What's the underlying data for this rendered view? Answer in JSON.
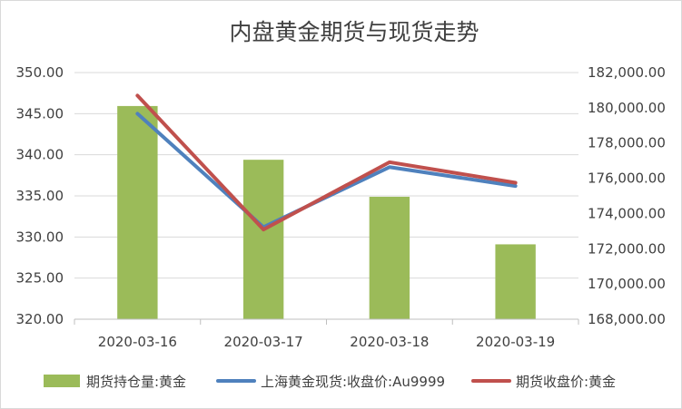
{
  "chart_data": {
    "type": "bar",
    "title": "内盘黄金期货与现货走势",
    "categories": [
      "2020-03-16",
      "2020-03-17",
      "2020-03-18",
      "2020-03-19"
    ],
    "left_axis": {
      "min": 320,
      "max": 350,
      "ticks": [
        "350.00",
        "345.00",
        "340.00",
        "335.00",
        "330.00",
        "325.00",
        "320.00"
      ]
    },
    "right_axis": {
      "min": 168000,
      "max": 182000,
      "ticks": [
        "182,000.00",
        "180,000.00",
        "178,000.00",
        "176,000.00",
        "174,000.00",
        "172,000.00",
        "170,000.00",
        "168,000.00"
      ]
    },
    "series": [
      {
        "name": "期货持仓量:黄金",
        "type": "bar",
        "axis": "right",
        "color": "#9BBB59",
        "values": [
          180100,
          177050,
          174950,
          172250
        ]
      },
      {
        "name": "上海黄金现货:收盘价:Au9999",
        "type": "line",
        "axis": "left",
        "color": "#4F81BD",
        "values": [
          345.0,
          331.2,
          338.5,
          336.2
        ]
      },
      {
        "name": "期货收盘价:黄金",
        "type": "line",
        "axis": "left",
        "color": "#C0504D",
        "values": [
          347.2,
          330.9,
          339.1,
          336.6
        ]
      }
    ],
    "grid": true,
    "legend_position": "bottom"
  }
}
